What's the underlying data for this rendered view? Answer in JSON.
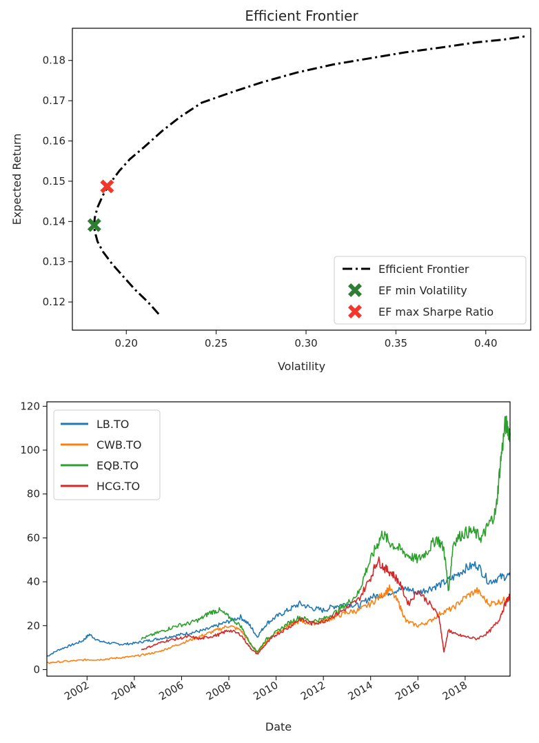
{
  "chart_data": [
    {
      "type": "line",
      "title": "Efficient Frontier",
      "xlabel": "Volatility",
      "ylabel": "Expected Return",
      "xlim": [
        0.17,
        0.425
      ],
      "ylim": [
        0.113,
        0.188
      ],
      "xticks": [
        0.2,
        0.25,
        0.3,
        0.35,
        0.4
      ],
      "xtick_labels": [
        "0.20",
        "0.25",
        "0.30",
        "0.35",
        "0.40"
      ],
      "yticks": [
        0.12,
        0.13,
        0.14,
        0.15,
        0.16,
        0.17,
        0.18
      ],
      "ytick_labels": [
        "0.12",
        "0.13",
        "0.14",
        "0.15",
        "0.16",
        "0.17",
        "0.18"
      ],
      "grid": false,
      "legend_position": "lower-right",
      "series": [
        {
          "name": "Efficient Frontier",
          "style": "dash-dot",
          "color": "#000000",
          "x": [
            0.218,
            0.212,
            0.205,
            0.198,
            0.192,
            0.187,
            0.184,
            0.1825,
            0.182,
            0.1825,
            0.184,
            0.187,
            0.191,
            0.196,
            0.202,
            0.21,
            0.22,
            0.23,
            0.242,
            0.258,
            0.275,
            0.295,
            0.315,
            0.335,
            0.355,
            0.375,
            0.395,
            0.41,
            0.422
          ],
          "y": [
            0.117,
            0.12,
            0.123,
            0.1265,
            0.1295,
            0.1325,
            0.135,
            0.1375,
            0.139,
            0.141,
            0.1435,
            0.1465,
            0.1495,
            0.1525,
            0.1555,
            0.1585,
            0.1625,
            0.166,
            0.1695,
            0.172,
            0.1745,
            0.177,
            0.179,
            0.1805,
            0.182,
            0.1832,
            0.1845,
            0.1852,
            0.186
          ]
        }
      ],
      "points": [
        {
          "name": "EF min Volatility",
          "x": 0.1822,
          "y": 0.1391,
          "color": "#2e7d32",
          "marker": "X"
        },
        {
          "name": "EF max Sharpe Ratio",
          "x": 0.1893,
          "y": 0.1487,
          "color": "#f0392b",
          "marker": "X"
        }
      ]
    },
    {
      "type": "line",
      "xlabel": "Date",
      "ylabel": "",
      "xlim": [
        2000.3,
        2019.9
      ],
      "ylim": [
        -3,
        122
      ],
      "xticks": [
        2002,
        2004,
        2006,
        2008,
        2010,
        2012,
        2014,
        2016,
        2018
      ],
      "xtick_labels": [
        "2002",
        "2004",
        "2006",
        "2008",
        "2010",
        "2012",
        "2014",
        "2016",
        "2018"
      ],
      "yticks": [
        0,
        20,
        40,
        60,
        80,
        100,
        120
      ],
      "ytick_labels": [
        "0",
        "20",
        "40",
        "60",
        "80",
        "100",
        "120"
      ],
      "grid": false,
      "legend_position": "top-left",
      "series": [
        {
          "name": "LB.TO",
          "color": "#1f77b4",
          "x": [
            2000.3,
            2000.8,
            2001.3,
            2001.8,
            2002.1,
            2002.5,
            2003.0,
            2003.5,
            2004.0,
            2004.5,
            2005.0,
            2005.5,
            2006.0,
            2006.5,
            2007.0,
            2007.5,
            2008.0,
            2008.5,
            2008.9,
            2009.2,
            2009.6,
            2010.0,
            2010.5,
            2011.0,
            2011.5,
            2012.0,
            2012.5,
            2013.0,
            2013.5,
            2014.0,
            2014.5,
            2015.0,
            2015.5,
            2016.0,
            2016.5,
            2017.0,
            2017.5,
            2018.0,
            2018.5,
            2019.0,
            2019.5,
            2019.9
          ],
          "values": [
            6,
            9,
            11,
            13,
            16,
            13,
            12,
            11.5,
            12,
            13,
            14,
            15,
            16,
            17,
            18,
            20,
            22,
            24,
            20,
            15,
            21,
            24,
            27,
            30,
            28,
            27,
            29,
            30,
            29,
            33,
            34,
            36,
            37,
            35,
            37,
            39,
            42,
            46,
            48,
            40,
            42,
            43
          ]
        },
        {
          "name": "CWB.TO",
          "color": "#ff7f0e",
          "x": [
            2000.3,
            2000.8,
            2001.5,
            2002.0,
            2002.5,
            2003.0,
            2003.5,
            2004.0,
            2004.5,
            2005.0,
            2005.5,
            2006.0,
            2006.5,
            2007.0,
            2007.5,
            2008.0,
            2008.5,
            2008.9,
            2009.2,
            2009.6,
            2010.0,
            2010.5,
            2011.0,
            2011.5,
            2012.0,
            2012.5,
            2013.0,
            2013.5,
            2014.0,
            2014.5,
            2014.8,
            2015.2,
            2015.5,
            2016.0,
            2016.5,
            2017.0,
            2017.5,
            2018.0,
            2018.5,
            2019.0,
            2019.5,
            2019.9
          ],
          "values": [
            3,
            3.5,
            4,
            4.5,
            4.5,
            5,
            5.5,
            6,
            7,
            8,
            10,
            12,
            14,
            16,
            18,
            20,
            18,
            12,
            8,
            13,
            17,
            20,
            22,
            21,
            22,
            24,
            26,
            27,
            30,
            34,
            37,
            30,
            22,
            20,
            22,
            26,
            28,
            33,
            36,
            30,
            31,
            33
          ]
        },
        {
          "name": "EQB.TO",
          "color": "#2ca02c",
          "x": [
            2004.3,
            2004.8,
            2005.3,
            2005.8,
            2006.3,
            2006.8,
            2007.2,
            2007.6,
            2008.0,
            2008.5,
            2008.9,
            2009.2,
            2009.6,
            2010.0,
            2010.5,
            2011.0,
            2011.5,
            2012.0,
            2012.5,
            2013.0,
            2013.5,
            2013.8,
            2014.2,
            2014.5,
            2014.8,
            2015.2,
            2015.6,
            2016.0,
            2016.4,
            2016.8,
            2017.1,
            2017.3,
            2017.5,
            2017.9,
            2018.3,
            2018.7,
            2019.0,
            2019.3,
            2019.5,
            2019.7,
            2019.9
          ],
          "values": [
            14,
            16,
            18,
            20,
            21,
            23,
            26,
            27,
            24,
            20,
            12,
            8,
            14,
            17,
            21,
            24,
            22,
            23,
            26,
            30,
            35,
            45,
            55,
            62,
            58,
            55,
            52,
            50,
            54,
            60,
            55,
            36,
            58,
            62,
            63,
            60,
            66,
            72,
            95,
            112,
            108
          ]
        },
        {
          "name": "HCG.TO",
          "color": "#d62728",
          "x": [
            2004.3,
            2004.8,
            2005.3,
            2005.8,
            2006.3,
            2006.8,
            2007.2,
            2007.6,
            2008.0,
            2008.5,
            2008.9,
            2009.2,
            2009.6,
            2010.0,
            2010.5,
            2011.0,
            2011.5,
            2012.0,
            2012.5,
            2013.0,
            2013.5,
            2014.0,
            2014.3,
            2014.6,
            2014.9,
            2015.2,
            2015.6,
            2016.0,
            2016.5,
            2016.9,
            2017.1,
            2017.3,
            2017.6,
            2018.0,
            2018.5,
            2019.0,
            2019.4,
            2019.7,
            2019.9
          ],
          "values": [
            9,
            11,
            13,
            14,
            15,
            14,
            15,
            16,
            18,
            16,
            10,
            7,
            12,
            16,
            19,
            23,
            21,
            22,
            25,
            28,
            32,
            42,
            50,
            46,
            44,
            40,
            30,
            36,
            30,
            24,
            8,
            18,
            16,
            15,
            14,
            17,
            22,
            30,
            34
          ]
        }
      ]
    }
  ]
}
